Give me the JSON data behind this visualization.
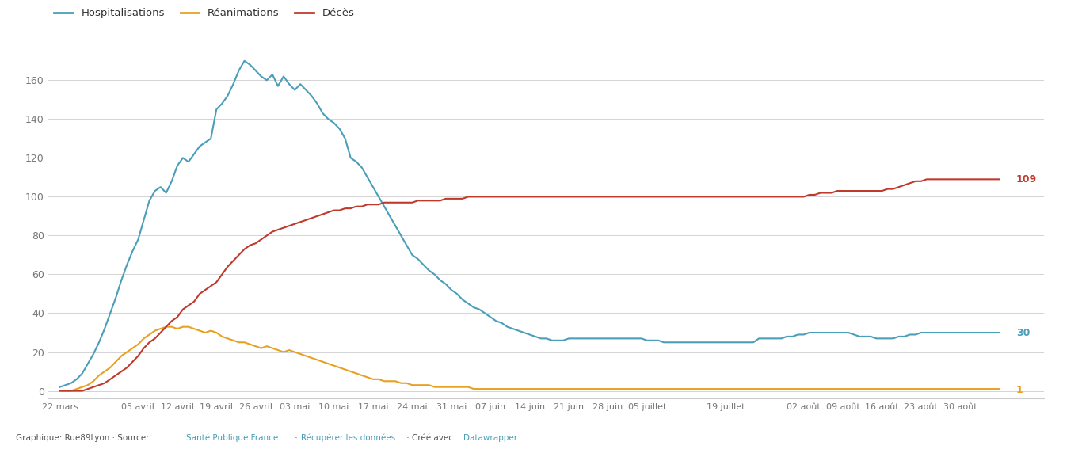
{
  "colors": {
    "hosp": "#4a9eb8",
    "rea": "#e8a020",
    "deces": "#c0392b"
  },
  "background_color": "#ffffff",
  "legend_labels": [
    "Hospitalisations",
    "Réanimations",
    "Décès"
  ],
  "yticks": [
    0,
    20,
    40,
    60,
    80,
    100,
    120,
    140,
    160
  ],
  "ylim": [
    -4,
    178
  ],
  "end_label_hosp": "30",
  "end_label_deces": "109",
  "end_label_rea": "1",
  "xtick_labels": [
    "22 mars",
    "05 avril",
    "12 avril",
    "19 avril",
    "26 avril",
    "03 mai",
    "10 mai",
    "17 mai",
    "24 mai",
    "31 mai",
    "07 juin",
    "14 juin",
    "21 juin",
    "28 juin",
    "05 juillet",
    "19 juillet",
    "02 août",
    "09 août",
    "16 août",
    "23 août",
    "30 août"
  ],
  "xtick_days": [
    0,
    14,
    21,
    28,
    35,
    42,
    49,
    56,
    63,
    70,
    77,
    84,
    91,
    98,
    105,
    119,
    133,
    140,
    147,
    154,
    161
  ],
  "total_days": 168,
  "hosp": [
    2,
    3,
    4,
    6,
    9,
    14,
    19,
    25,
    32,
    40,
    48,
    57,
    65,
    72,
    78,
    88,
    98,
    103,
    105,
    102,
    108,
    116,
    120,
    118,
    122,
    126,
    128,
    130,
    145,
    148,
    152,
    158,
    165,
    170,
    168,
    165,
    162,
    160,
    163,
    157,
    162,
    158,
    155,
    158,
    155,
    152,
    148,
    143,
    140,
    138,
    135,
    130,
    120,
    118,
    115,
    110,
    105,
    100,
    95,
    90,
    85,
    80,
    75,
    70,
    68,
    65,
    62,
    60,
    57,
    55,
    52,
    50,
    47,
    45,
    43,
    42,
    40,
    38,
    36,
    35,
    33,
    32,
    31,
    30,
    29,
    28,
    27,
    27,
    26,
    26,
    26,
    27,
    27,
    27,
    27,
    27,
    27,
    27,
    27,
    27,
    27,
    27,
    27,
    27,
    27,
    26,
    26,
    26,
    25,
    25,
    25,
    25,
    25,
    25,
    25,
    25,
    25,
    25,
    25,
    25,
    25,
    25,
    25,
    25,
    25,
    27,
    27,
    27,
    27,
    27,
    28,
    28,
    29,
    29,
    30,
    30,
    30,
    30,
    30,
    30,
    30,
    30,
    29,
    28,
    28,
    28,
    27,
    27,
    27,
    27,
    28,
    28,
    29,
    29,
    30,
    30,
    30,
    30,
    30,
    30,
    30,
    30,
    30,
    30,
    30,
    30,
    30,
    30,
    30
  ],
  "rea": [
    0,
    0,
    0,
    1,
    2,
    3,
    5,
    8,
    10,
    12,
    15,
    18,
    20,
    22,
    24,
    27,
    29,
    31,
    32,
    33,
    33,
    32,
    33,
    33,
    32,
    31,
    30,
    31,
    30,
    28,
    27,
    26,
    25,
    25,
    24,
    23,
    22,
    23,
    22,
    21,
    20,
    21,
    20,
    19,
    18,
    17,
    16,
    15,
    14,
    13,
    12,
    11,
    10,
    9,
    8,
    7,
    6,
    6,
    5,
    5,
    5,
    4,
    4,
    3,
    3,
    3,
    3,
    2,
    2,
    2,
    2,
    2,
    2,
    2,
    1,
    1,
    1,
    1,
    1,
    1,
    1,
    1,
    1,
    1,
    1,
    1,
    1,
    1,
    1,
    1,
    1,
    1,
    1,
    1,
    1,
    1,
    1,
    1,
    1,
    1,
    1,
    1,
    1,
    1,
    1,
    1,
    1,
    1,
    1,
    1,
    1,
    1,
    1,
    1,
    1,
    1,
    1,
    1,
    1,
    1,
    1,
    1,
    1,
    1,
    1,
    1,
    1,
    1,
    1,
    1,
    1,
    1,
    1,
    1,
    1,
    1,
    1,
    1,
    1,
    1,
    1,
    1,
    1,
    1,
    1,
    1,
    1,
    1,
    1,
    1,
    1,
    1,
    1,
    1,
    1,
    1,
    1,
    1,
    1,
    1,
    1,
    1,
    1,
    1,
    1,
    1,
    1,
    1,
    1
  ],
  "deces": [
    0,
    0,
    0,
    0,
    0,
    1,
    2,
    3,
    4,
    6,
    8,
    10,
    12,
    15,
    18,
    22,
    25,
    27,
    30,
    33,
    36,
    38,
    42,
    44,
    46,
    50,
    52,
    54,
    56,
    60,
    64,
    67,
    70,
    73,
    75,
    76,
    78,
    80,
    82,
    83,
    84,
    85,
    86,
    87,
    88,
    89,
    90,
    91,
    92,
    93,
    93,
    94,
    94,
    95,
    95,
    96,
    96,
    96,
    97,
    97,
    97,
    97,
    97,
    97,
    98,
    98,
    98,
    98,
    98,
    99,
    99,
    99,
    99,
    100,
    100,
    100,
    100,
    100,
    100,
    100,
    100,
    100,
    100,
    100,
    100,
    100,
    100,
    100,
    100,
    100,
    100,
    100,
    100,
    100,
    100,
    100,
    100,
    100,
    100,
    100,
    100,
    100,
    100,
    100,
    100,
    100,
    100,
    100,
    100,
    100,
    100,
    100,
    100,
    100,
    100,
    100,
    100,
    100,
    100,
    100,
    100,
    100,
    100,
    100,
    100,
    100,
    100,
    100,
    100,
    100,
    100,
    100,
    100,
    100,
    101,
    101,
    102,
    102,
    102,
    103,
    103,
    103,
    103,
    103,
    103,
    103,
    103,
    103,
    104,
    104,
    105,
    106,
    107,
    108,
    108,
    109,
    109,
    109,
    109,
    109,
    109,
    109,
    109,
    109,
    109,
    109,
    109,
    109,
    109
  ]
}
